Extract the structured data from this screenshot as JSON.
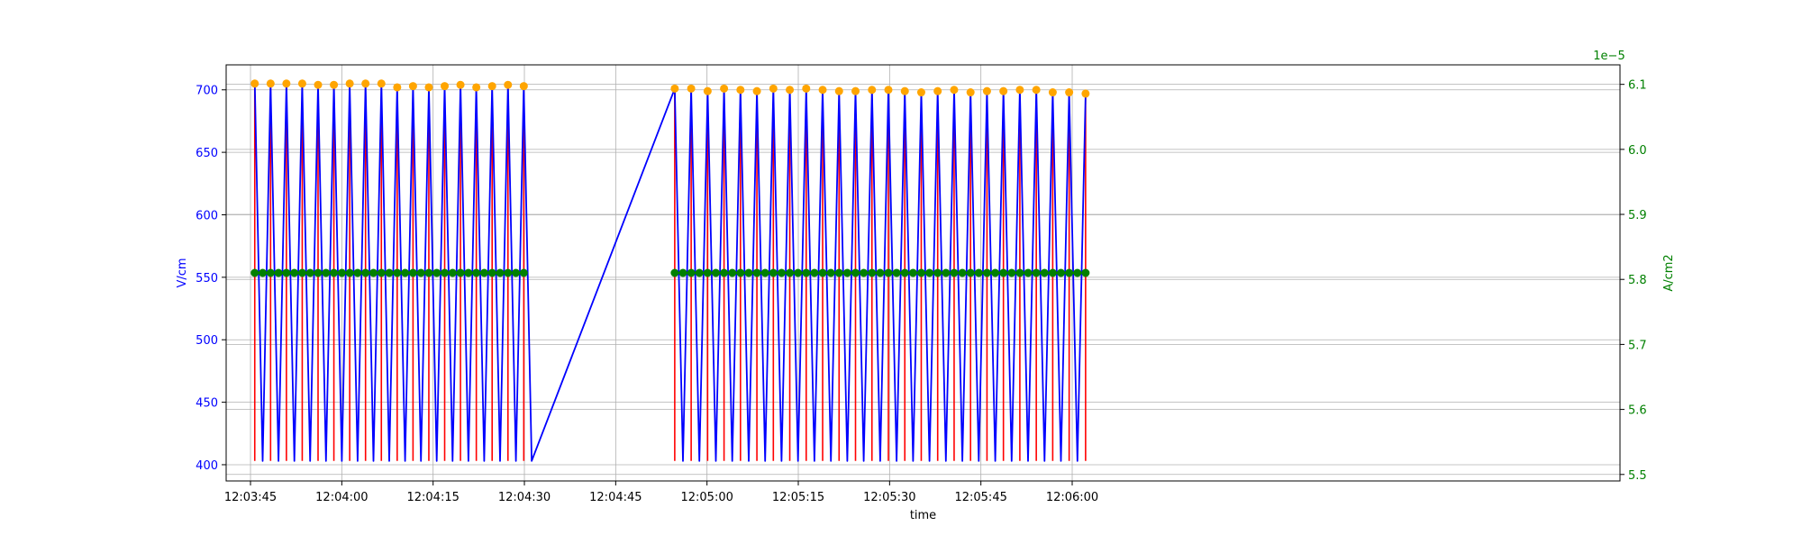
{
  "chart_data": {
    "type": "line",
    "xlabel": "time",
    "ylabel_left": "V/cm",
    "ylabel_right": "A/cm2",
    "right_axis_offset_label": "1e−5",
    "xlim": [
      -4,
      225
    ],
    "ylim_left": [
      387,
      720
    ],
    "ylim_right": [
      5.49,
      6.13
    ],
    "x_ticks": [
      {
        "value": 0,
        "label": "12:03:45"
      },
      {
        "value": 15,
        "label": "12:04:00"
      },
      {
        "value": 30,
        "label": "12:04:15"
      },
      {
        "value": 45,
        "label": "12:04:30"
      },
      {
        "value": 60,
        "label": "12:04:45"
      },
      {
        "value": 75,
        "label": "12:05:00"
      },
      {
        "value": 90,
        "label": "12:05:15"
      },
      {
        "value": 105,
        "label": "12:05:30"
      },
      {
        "value": 120,
        "label": "12:05:45"
      },
      {
        "value": 135,
        "label": "12:06:00"
      }
    ],
    "y_left_ticks": [
      {
        "value": 400,
        "label": "400"
      },
      {
        "value": 450,
        "label": "450"
      },
      {
        "value": 500,
        "label": "500"
      },
      {
        "value": 550,
        "label": "550"
      },
      {
        "value": 600,
        "label": "600"
      },
      {
        "value": 650,
        "label": "650"
      },
      {
        "value": 700,
        "label": "700"
      }
    ],
    "y_right_ticks": [
      {
        "value": 5.5,
        "label": "5.5"
      },
      {
        "value": 5.6,
        "label": "5.6"
      },
      {
        "value": 5.7,
        "label": "5.7"
      },
      {
        "value": 5.8,
        "label": "5.8"
      },
      {
        "value": 5.9,
        "label": "5.9"
      },
      {
        "value": 6.0,
        "label": "6.0"
      },
      {
        "value": 6.1,
        "label": "6.1"
      }
    ],
    "grid": true,
    "colors": {
      "left_axis": "#0000ff",
      "right_axis": "#008000",
      "field_line": "#0000ff",
      "pulse_lines": "#ff0000",
      "peak_markers": "#ffa500",
      "current_series": "#008000"
    },
    "segments": [
      {
        "start": 0.7,
        "step": 2.6,
        "peaks": [
          705,
          705,
          705,
          705,
          704,
          704,
          705,
          705,
          705,
          702,
          703,
          702,
          703,
          704,
          702,
          703,
          704,
          703
        ],
        "low": 403,
        "current": 5.81
      },
      {
        "start": 69.7,
        "step": 2.7,
        "peaks": [
          701,
          701,
          699,
          701,
          700,
          699,
          701,
          700,
          701,
          700,
          699,
          699,
          700,
          700,
          699,
          698,
          699,
          700,
          698,
          699,
          699,
          700,
          700,
          698,
          698,
          697
        ],
        "low": 403,
        "current": 5.81
      }
    ]
  }
}
